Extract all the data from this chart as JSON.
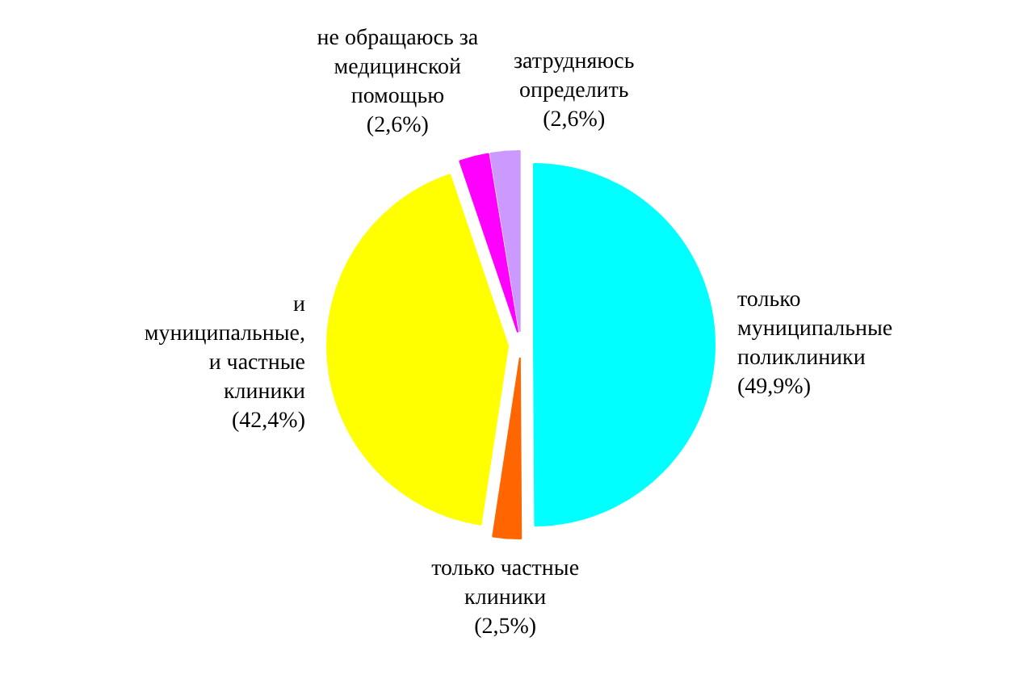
{
  "chart_data": {
    "type": "pie",
    "categories": [
      "только муниципальные поликлиники",
      "только частные клиники",
      "и муниципальные, и частные клиники",
      "не обращаюсь за медицинской помощью",
      "затрудняюсь определить"
    ],
    "values": [
      49.9,
      2.5,
      42.4,
      2.6,
      2.6
    ],
    "colors": [
      "#00ffff",
      "#ff6600",
      "#ffff00",
      "#ff00ff",
      "#cc99ff"
    ],
    "value_labels": [
      "(49,9%)",
      "(2,5%)",
      "(42,4%)",
      "(2,6%)",
      "(2,6%)"
    ]
  }
}
